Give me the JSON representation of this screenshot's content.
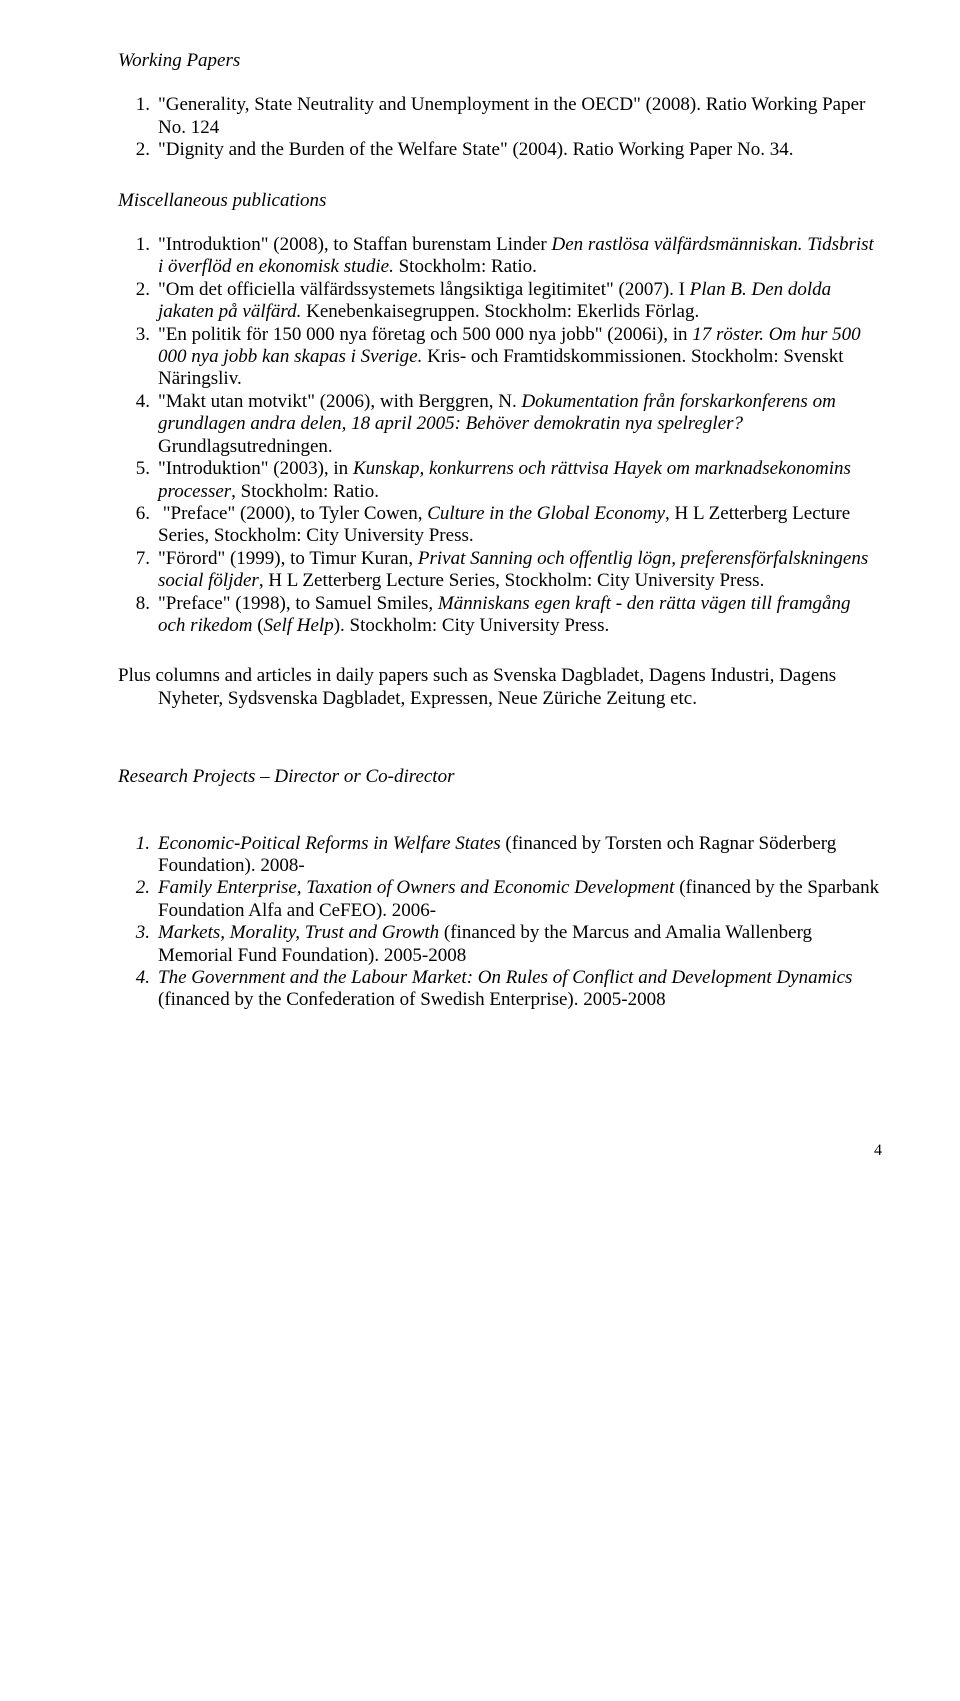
{
  "working_papers": {
    "heading": "Working Papers",
    "items": [
      {
        "num": "1.",
        "text": "\"Generality, State Neutrality and Unemployment in the OECD\" (2008). Ratio Working Paper No. 124"
      },
      {
        "num": "2.",
        "text": "\"Dignity and the Burden of the Welfare State\" (2004). Ratio Working Paper No. 34."
      }
    ]
  },
  "misc": {
    "heading": "Miscellaneous publications",
    "items": [
      {
        "num": "1.",
        "html": "\"Introduktion\" (2008), to Staffan burenstam Linder <i>Den rastlösa välfärdsmänniskan. Tidsbrist i överflöd en ekonomisk studie.</i> Stockholm: Ratio."
      },
      {
        "num": "2.",
        "html": "\"Om det officiella välfärdssystemets långsiktiga legitimitet\" (2007). I <i>Plan B. Den dolda jakaten på välfärd.</i> Kenebenkaisegruppen. Stockholm: Ekerlids Förlag."
      },
      {
        "num": "3.",
        "html": "\"En politik för 150 000 nya företag och 500 000 nya jobb\" (2006i), in <i>17 röster. Om hur 500 000 nya jobb kan skapas i Sverige.</i> Kris- och Framtidskommissionen. Stockholm: Svenskt Näringsliv."
      },
      {
        "num": "4.",
        "html": "\"Makt utan motvikt\" (2006), with Berggren, N. <i>Dokumentation från forskarkonferens om grundlagen andra delen, 18 april 2005: Behöver demokratin nya spelregler?</i> Grundlagsutredningen."
      },
      {
        "num": "5.",
        "html": "\"Introduktion\" (2003), in <i>Kunskap, konkurrens och rättvisa Hayek om marknadsekonomins processer</i>, Stockholm: Ratio."
      },
      {
        "num": "6.",
        "html": "&nbsp;\"Preface\" (2000), to Tyler Cowen, <i>Culture in the Global Economy</i>, H L Zetterberg Lecture Series, Stockholm: City University Press."
      },
      {
        "num": "7.",
        "html": "\"Förord\" (1999), to Timur Kuran, <i>Privat Sanning och offentlig lögn, preferensförfalskningens social följder</i>, H L Zetterberg Lecture Series, Stockholm: City University Press."
      },
      {
        "num": "8.",
        "html": "\"Preface\" (1998), to Samuel Smiles, <i>Människans egen kraft - den rätta vägen till framgång och rikedom</i> (<i>Self Help</i>). Stockholm: City University Press."
      }
    ]
  },
  "plus_para": "Plus columns and articles in daily papers such as Svenska Dagbladet, Dagens Industri, Dagens Nyheter, Sydsvenska Dagbladet, Expressen, Neue Züriche Zeitung etc.",
  "research": {
    "heading": "Research Projects – Director or Co-director",
    "items": [
      {
        "num": "1.",
        "html": "<i>Economic-Poitical Reforms in Welfare States</i> (financed by Torsten och Ragnar Söderberg Foundation). 2008-",
        "num_italic": true
      },
      {
        "num": "2.",
        "html": "<i>Family Enterprise, Taxation of Owners and Economic Development</i> (financed by the Sparbank Foundation Alfa and CeFEO). 2006-",
        "num_italic": true
      },
      {
        "num": "3.",
        "html": "<i>Markets, Morality, Trust and Growth</i> (financed by the Marcus and Amalia Wallenberg Memorial Fund Foundation). 2005-2008",
        "num_italic": true
      },
      {
        "num": "4.",
        "html": "<i>The Government and the Labour Market: On Rules of Conflict and Development Dynamics</i> (financed by the Confederation of Swedish Enterprise). 2005-2008",
        "num_italic": true
      }
    ]
  },
  "page_number": "4"
}
